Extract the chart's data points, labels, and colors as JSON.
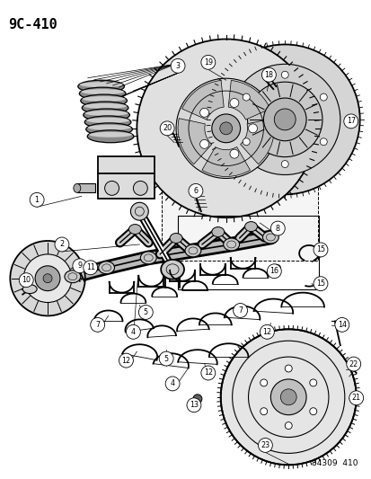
{
  "title": "9C-410",
  "footer": "84309  410",
  "bg_color": "#ffffff",
  "fg_color": "#000000",
  "fig_width": 4.14,
  "fig_height": 5.33,
  "dpi": 100
}
